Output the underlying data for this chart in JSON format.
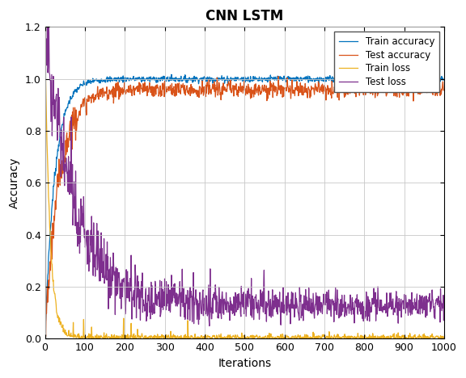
{
  "title": "CNN LSTM",
  "xlabel": "Iterations",
  "ylabel": "Accuracy",
  "xlim": [
    0,
    1000
  ],
  "ylim": [
    0,
    1.2
  ],
  "yticks": [
    0,
    0.2,
    0.4,
    0.6,
    0.8,
    1.0,
    1.2
  ],
  "xticks": [
    0,
    100,
    200,
    300,
    400,
    500,
    600,
    700,
    800,
    900,
    1000
  ],
  "colors": {
    "train_accuracy": "#0072BD",
    "test_accuracy": "#D95319",
    "train_loss": "#EDB120",
    "test_loss": "#7E2F8E"
  },
  "legend_labels": [
    "Train accuracy",
    "Test accuracy",
    "Train loss",
    "Test loss"
  ],
  "n_points": 1000,
  "seed": 7
}
